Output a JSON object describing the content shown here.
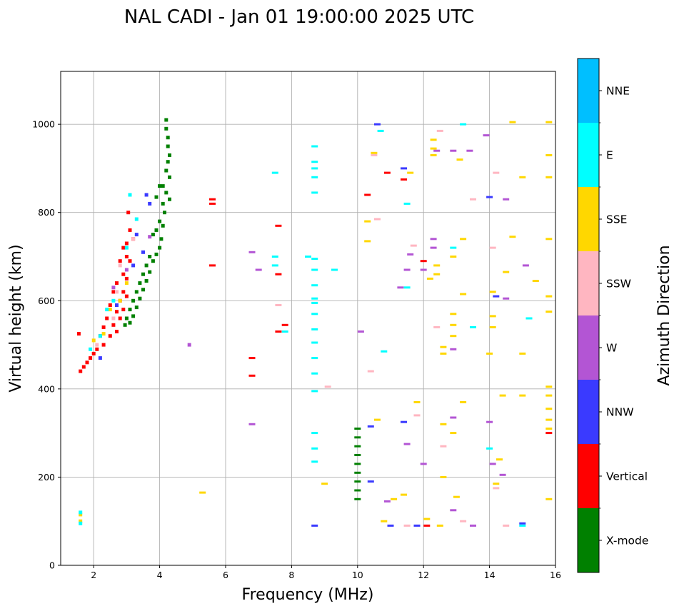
{
  "chart_data": {
    "type": "scatter",
    "title": "NAL CADI - Jan 01 19:00:00 2025 UTC",
    "xlabel": "Frequency (MHz)",
    "ylabel": "Virtual height (km)",
    "xlim": [
      1,
      16
    ],
    "ylim": [
      0,
      1120
    ],
    "xticks": [
      2,
      4,
      6,
      8,
      10,
      12,
      14,
      16
    ],
    "yticks": [
      0,
      200,
      400,
      600,
      800,
      1000
    ],
    "grid": true,
    "colorbar": {
      "label": "Azimuth Direction",
      "categories": [
        {
          "name": "X-mode",
          "color": "#008000"
        },
        {
          "name": "Vertical",
          "color": "#ff0000"
        },
        {
          "name": "NNW",
          "color": "#3a3aff"
        },
        {
          "name": "W",
          "color": "#b355d4"
        },
        {
          "name": "SSW",
          "color": "#ffb6c1"
        },
        {
          "name": "SSE",
          "color": "#ffd700"
        },
        {
          "name": "E",
          "color": "#00ffff"
        },
        {
          "name": "NNE",
          "color": "#00bfff"
        }
      ]
    },
    "series": [
      {
        "name": "X-mode",
        "points": [
          [
            4.2,
            1010
          ],
          [
            4.2,
            990
          ],
          [
            4.25,
            970
          ],
          [
            4.25,
            950
          ],
          [
            4.3,
            930
          ],
          [
            4.25,
            915
          ],
          [
            4.2,
            895
          ],
          [
            4.3,
            880
          ],
          [
            4.1,
            860
          ],
          [
            4.2,
            845
          ],
          [
            4.3,
            830
          ],
          [
            4.0,
            860
          ],
          [
            4.1,
            820
          ],
          [
            3.9,
            835
          ],
          [
            4.15,
            800
          ],
          [
            4.0,
            780
          ],
          [
            4.1,
            770
          ],
          [
            3.9,
            760
          ],
          [
            4.05,
            740
          ],
          [
            3.8,
            750
          ],
          [
            4.0,
            720
          ],
          [
            3.9,
            705
          ],
          [
            3.7,
            700
          ],
          [
            3.8,
            690
          ],
          [
            3.6,
            680
          ],
          [
            3.7,
            665
          ],
          [
            3.5,
            660
          ],
          [
            3.6,
            645
          ],
          [
            3.4,
            640
          ],
          [
            3.5,
            625
          ],
          [
            3.3,
            620
          ],
          [
            3.4,
            605
          ],
          [
            3.2,
            600
          ],
          [
            3.3,
            585
          ],
          [
            3.1,
            580
          ],
          [
            3.2,
            565
          ],
          [
            3.0,
            560
          ],
          [
            3.1,
            550
          ],
          [
            2.95,
            545
          ],
          [
            10.0,
            310
          ],
          [
            10.0,
            290
          ],
          [
            10.0,
            270
          ],
          [
            10.0,
            250
          ],
          [
            10.0,
            230
          ],
          [
            10.0,
            210
          ],
          [
            10.0,
            190
          ],
          [
            10.0,
            170
          ],
          [
            10.0,
            150
          ]
        ]
      },
      {
        "name": "Vertical",
        "points": [
          [
            3.05,
            800
          ],
          [
            3.1,
            760
          ],
          [
            3.0,
            730
          ],
          [
            3.2,
            740
          ],
          [
            2.9,
            720
          ],
          [
            3.0,
            700
          ],
          [
            3.1,
            690
          ],
          [
            2.8,
            690
          ],
          [
            2.9,
            660
          ],
          [
            3.0,
            650
          ],
          [
            2.7,
            640
          ],
          [
            2.9,
            620
          ],
          [
            3.0,
            610
          ],
          [
            2.6,
            620
          ],
          [
            2.8,
            600
          ],
          [
            2.9,
            580
          ],
          [
            2.5,
            590
          ],
          [
            2.7,
            575
          ],
          [
            2.8,
            560
          ],
          [
            2.4,
            560
          ],
          [
            2.6,
            545
          ],
          [
            2.7,
            530
          ],
          [
            2.3,
            540
          ],
          [
            2.5,
            520
          ],
          [
            2.2,
            520
          ],
          [
            2.3,
            500
          ],
          [
            2.1,
            490
          ],
          [
            2.0,
            480
          ],
          [
            1.9,
            470
          ],
          [
            1.8,
            460
          ],
          [
            1.7,
            450
          ],
          [
            1.6,
            440
          ],
          [
            1.55,
            525
          ],
          [
            5.6,
            830
          ],
          [
            5.6,
            820
          ],
          [
            5.6,
            680
          ],
          [
            6.8,
            470
          ],
          [
            6.8,
            430
          ],
          [
            7.6,
            770
          ],
          [
            7.6,
            660
          ],
          [
            7.6,
            530
          ],
          [
            7.8,
            545
          ],
          [
            10.3,
            840
          ],
          [
            10.9,
            890
          ],
          [
            11.4,
            875
          ],
          [
            12.0,
            690
          ],
          [
            12.1,
            90
          ],
          [
            15.8,
            300
          ]
        ]
      },
      {
        "name": "NNW",
        "points": [
          [
            3.6,
            840
          ],
          [
            3.7,
            820
          ],
          [
            3.3,
            750
          ],
          [
            3.5,
            710
          ],
          [
            3.2,
            680
          ],
          [
            2.7,
            590
          ],
          [
            2.2,
            470
          ],
          [
            10.6,
            1000
          ],
          [
            10.4,
            315
          ],
          [
            10.4,
            190
          ],
          [
            11.0,
            90
          ],
          [
            11.8,
            90
          ],
          [
            8.7,
            90
          ],
          [
            11.4,
            900
          ],
          [
            11.4,
            325
          ],
          [
            14.2,
            610
          ],
          [
            14.0,
            835
          ],
          [
            15.0,
            95
          ]
        ]
      },
      {
        "name": "W",
        "points": [
          [
            3.7,
            745
          ],
          [
            3.0,
            670
          ],
          [
            2.6,
            630
          ],
          [
            4.9,
            500
          ],
          [
            6.8,
            710
          ],
          [
            6.8,
            320
          ],
          [
            7.0,
            670
          ],
          [
            10.1,
            530
          ],
          [
            11.6,
            705
          ],
          [
            11.3,
            630
          ],
          [
            11.5,
            670
          ],
          [
            11.5,
            275
          ],
          [
            12.3,
            740
          ],
          [
            12.3,
            720
          ],
          [
            12.4,
            940
          ],
          [
            12.9,
            940
          ],
          [
            13.4,
            940
          ],
          [
            12.0,
            670
          ],
          [
            12.0,
            230
          ],
          [
            12.9,
            490
          ],
          [
            12.9,
            335
          ],
          [
            13.5,
            90
          ],
          [
            14.0,
            325
          ],
          [
            14.1,
            230
          ],
          [
            14.5,
            605
          ],
          [
            14.5,
            830
          ],
          [
            15.1,
            680
          ],
          [
            10.9,
            145
          ],
          [
            12.9,
            125
          ],
          [
            13.9,
            975
          ],
          [
            14.4,
            205
          ]
        ]
      },
      {
        "name": "SSW",
        "points": [
          [
            3.2,
            740
          ],
          [
            2.8,
            680
          ],
          [
            2.7,
            620
          ],
          [
            2.6,
            560
          ],
          [
            2.1,
            500
          ],
          [
            7.6,
            590
          ],
          [
            9.1,
            405
          ],
          [
            10.4,
            440
          ],
          [
            10.5,
            930
          ],
          [
            10.6,
            785
          ],
          [
            11.7,
            725
          ],
          [
            12.5,
            985
          ],
          [
            12.6,
            270
          ],
          [
            13.2,
            100
          ],
          [
            13.5,
            830
          ],
          [
            14.1,
            720
          ],
          [
            14.2,
            890
          ],
          [
            14.2,
            175
          ],
          [
            14.5,
            90
          ],
          [
            11.8,
            340
          ],
          [
            12.4,
            540
          ],
          [
            11.5,
            90
          ]
        ]
      },
      {
        "name": "SSE",
        "points": [
          [
            3.0,
            640
          ],
          [
            2.8,
            600
          ],
          [
            2.5,
            580
          ],
          [
            2.3,
            525
          ],
          [
            2.0,
            510
          ],
          [
            1.6,
            100
          ],
          [
            1.6,
            115
          ],
          [
            5.3,
            165
          ],
          [
            9.0,
            185
          ],
          [
            10.3,
            780
          ],
          [
            10.3,
            735
          ],
          [
            10.5,
            935
          ],
          [
            10.6,
            330
          ],
          [
            10.8,
            100
          ],
          [
            11.1,
            150
          ],
          [
            11.4,
            160
          ],
          [
            11.6,
            890
          ],
          [
            11.8,
            370
          ],
          [
            12.1,
            105
          ],
          [
            12.2,
            650
          ],
          [
            12.3,
            965
          ],
          [
            12.3,
            945
          ],
          [
            12.3,
            930
          ],
          [
            12.4,
            680
          ],
          [
            12.4,
            660
          ],
          [
            12.5,
            90
          ],
          [
            12.6,
            495
          ],
          [
            12.6,
            480
          ],
          [
            12.6,
            320
          ],
          [
            12.6,
            200
          ],
          [
            12.9,
            570
          ],
          [
            12.9,
            545
          ],
          [
            12.9,
            520
          ],
          [
            12.9,
            300
          ],
          [
            12.9,
            700
          ],
          [
            13.0,
            155
          ],
          [
            13.2,
            740
          ],
          [
            13.2,
            615
          ],
          [
            14.1,
            620
          ],
          [
            14.1,
            565
          ],
          [
            14.1,
            540
          ],
          [
            14.2,
            185
          ],
          [
            14.3,
            240
          ],
          [
            14.4,
            385
          ],
          [
            14.5,
            665
          ],
          [
            14.7,
            1005
          ],
          [
            14.7,
            745
          ],
          [
            15.0,
            880
          ],
          [
            15.0,
            480
          ],
          [
            15.0,
            385
          ],
          [
            15.4,
            645
          ],
          [
            15.8,
            1005
          ],
          [
            15.8,
            930
          ],
          [
            15.8,
            880
          ],
          [
            15.8,
            740
          ],
          [
            15.8,
            610
          ],
          [
            15.8,
            575
          ],
          [
            15.8,
            405
          ],
          [
            15.8,
            385
          ],
          [
            15.8,
            355
          ],
          [
            15.8,
            330
          ],
          [
            15.8,
            310
          ],
          [
            15.8,
            150
          ],
          [
            14.0,
            480
          ],
          [
            13.1,
            920
          ],
          [
            13.2,
            370
          ]
        ]
      },
      {
        "name": "E",
        "points": [
          [
            3.1,
            840
          ],
          [
            3.3,
            785
          ],
          [
            3.0,
            720
          ],
          [
            2.6,
            600
          ],
          [
            2.4,
            580
          ],
          [
            2.2,
            520
          ],
          [
            1.9,
            490
          ],
          [
            1.6,
            120
          ],
          [
            1.6,
            95
          ],
          [
            7.5,
            890
          ],
          [
            7.5,
            700
          ],
          [
            7.5,
            680
          ],
          [
            7.8,
            530
          ],
          [
            8.7,
            950
          ],
          [
            8.7,
            915
          ],
          [
            8.7,
            900
          ],
          [
            8.7,
            880
          ],
          [
            8.7,
            845
          ],
          [
            8.7,
            695
          ],
          [
            8.7,
            670
          ],
          [
            8.7,
            635
          ],
          [
            8.7,
            605
          ],
          [
            8.7,
            595
          ],
          [
            8.7,
            570
          ],
          [
            8.7,
            535
          ],
          [
            8.7,
            505
          ],
          [
            8.7,
            470
          ],
          [
            8.7,
            435
          ],
          [
            8.7,
            395
          ],
          [
            8.7,
            300
          ],
          [
            8.7,
            265
          ],
          [
            8.7,
            235
          ],
          [
            8.5,
            700
          ],
          [
            9.3,
            670
          ],
          [
            10.8,
            485
          ],
          [
            11.5,
            820
          ],
          [
            11.5,
            630
          ],
          [
            12.9,
            720
          ],
          [
            13.5,
            540
          ],
          [
            14.0,
            265
          ],
          [
            13.2,
            1000
          ],
          [
            15.2,
            560
          ],
          [
            15.0,
            90
          ],
          [
            10.7,
            985
          ]
        ]
      }
    ]
  }
}
